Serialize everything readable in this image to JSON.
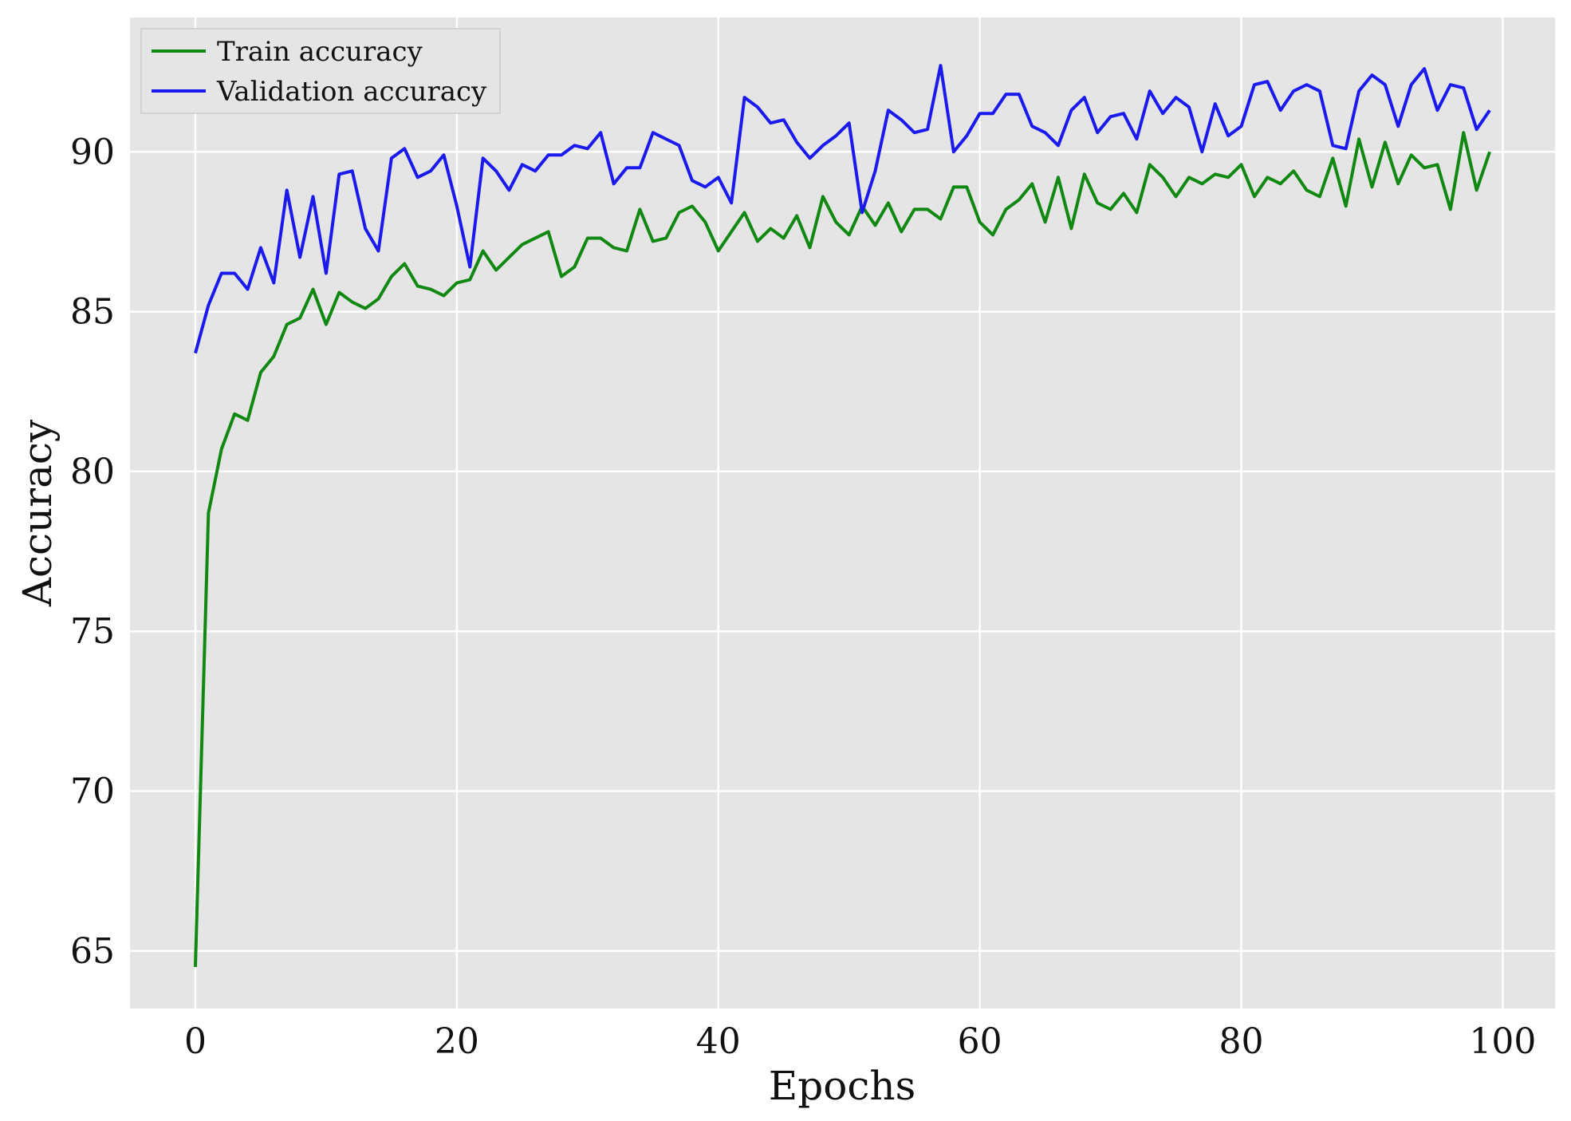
{
  "chart_data": {
    "type": "line",
    "title": "",
    "xlabel": "Epochs",
    "ylabel": "Accuracy",
    "xlim": [
      -5,
      104
    ],
    "ylim": [
      63.2,
      94.2
    ],
    "xticks": [
      0,
      20,
      40,
      60,
      80,
      100
    ],
    "yticks": [
      65,
      70,
      75,
      80,
      85,
      90
    ],
    "grid": true,
    "background": "#e5e5e5",
    "grid_color": "#ffffff",
    "legend_position": "top-left",
    "series": [
      {
        "name": "Train accuracy",
        "color": "#118811",
        "x": [
          0,
          1,
          2,
          3,
          4,
          5,
          6,
          7,
          8,
          9,
          10,
          11,
          12,
          13,
          14,
          15,
          16,
          17,
          18,
          19,
          20,
          21,
          22,
          23,
          24,
          25,
          26,
          27,
          28,
          29,
          30,
          31,
          32,
          33,
          34,
          35,
          36,
          37,
          38,
          39,
          40,
          41,
          42,
          43,
          44,
          45,
          46,
          47,
          48,
          49,
          50,
          51,
          52,
          53,
          54,
          55,
          56,
          57,
          58,
          59,
          60,
          61,
          62,
          63,
          64,
          65,
          66,
          67,
          68,
          69,
          70,
          71,
          72,
          73,
          74,
          75,
          76,
          77,
          78,
          79,
          80,
          81,
          82,
          83,
          84,
          85,
          86,
          87,
          88,
          89,
          90,
          91,
          92,
          93,
          94,
          95,
          96,
          97,
          98,
          99
        ],
        "values": [
          64.5,
          78.7,
          80.7,
          81.8,
          81.6,
          83.1,
          83.6,
          84.6,
          84.8,
          85.7,
          84.6,
          85.6,
          85.3,
          85.1,
          85.4,
          86.1,
          86.5,
          85.8,
          85.7,
          85.5,
          85.9,
          86.0,
          86.9,
          86.3,
          86.7,
          87.1,
          87.3,
          87.5,
          86.1,
          86.4,
          87.3,
          87.3,
          87.0,
          86.9,
          88.2,
          87.2,
          87.3,
          88.1,
          88.3,
          87.8,
          86.9,
          87.5,
          88.1,
          87.2,
          87.6,
          87.3,
          88.0,
          87.0,
          88.6,
          87.8,
          87.4,
          88.3,
          87.7,
          88.4,
          87.5,
          88.2,
          88.2,
          87.9,
          88.9,
          88.9,
          87.8,
          87.4,
          88.2,
          88.5,
          89.0,
          87.8,
          89.2,
          87.6,
          89.3,
          88.4,
          88.2,
          88.7,
          88.1,
          89.6,
          89.2,
          88.6,
          89.2,
          89.0,
          89.3,
          89.2,
          89.6,
          88.6,
          89.2,
          89.0,
          89.4,
          88.8,
          88.6,
          89.8,
          88.3,
          90.4,
          88.9,
          90.3,
          89.0,
          89.9,
          89.5,
          89.6,
          88.2,
          90.6,
          88.8,
          90.0
        ]
      },
      {
        "name": "Validation accuracy",
        "color": "#1a1aee",
        "x": [
          0,
          1,
          2,
          3,
          4,
          5,
          6,
          7,
          8,
          9,
          10,
          11,
          12,
          13,
          14,
          15,
          16,
          17,
          18,
          19,
          20,
          21,
          22,
          23,
          24,
          25,
          26,
          27,
          28,
          29,
          30,
          31,
          32,
          33,
          34,
          35,
          36,
          37,
          38,
          39,
          40,
          41,
          42,
          43,
          44,
          45,
          46,
          47,
          48,
          49,
          50,
          51,
          52,
          53,
          54,
          55,
          56,
          57,
          58,
          59,
          60,
          61,
          62,
          63,
          64,
          65,
          66,
          67,
          68,
          69,
          70,
          71,
          72,
          73,
          74,
          75,
          76,
          77,
          78,
          79,
          80,
          81,
          82,
          83,
          84,
          85,
          86,
          87,
          88,
          89,
          90,
          91,
          92,
          93,
          94,
          95,
          96,
          97,
          98,
          99
        ],
        "values": [
          83.7,
          85.2,
          86.2,
          86.2,
          85.7,
          87.0,
          85.9,
          88.8,
          86.7,
          88.6,
          86.2,
          89.3,
          89.4,
          87.6,
          86.9,
          89.8,
          90.1,
          89.2,
          89.4,
          89.9,
          88.3,
          86.4,
          89.8,
          89.4,
          88.8,
          89.6,
          89.4,
          89.9,
          89.9,
          90.2,
          90.1,
          90.6,
          89.0,
          89.5,
          89.5,
          90.6,
          90.4,
          90.2,
          89.1,
          88.9,
          89.2,
          88.4,
          91.7,
          91.4,
          90.9,
          91.0,
          90.3,
          89.8,
          90.2,
          90.5,
          90.9,
          88.1,
          89.4,
          91.3,
          91.0,
          90.6,
          90.7,
          92.7,
          90.0,
          90.5,
          91.2,
          91.2,
          91.8,
          91.8,
          90.8,
          90.6,
          90.2,
          91.3,
          91.7,
          90.6,
          91.1,
          91.2,
          90.4,
          91.9,
          91.2,
          91.7,
          91.4,
          90.0,
          91.5,
          90.5,
          90.8,
          92.1,
          92.2,
          91.3,
          91.9,
          92.1,
          91.9,
          90.2,
          90.1,
          91.9,
          92.4,
          92.1,
          90.8,
          92.1,
          92.6,
          91.3,
          92.1,
          92.0,
          90.7,
          91.3
        ]
      }
    ]
  }
}
